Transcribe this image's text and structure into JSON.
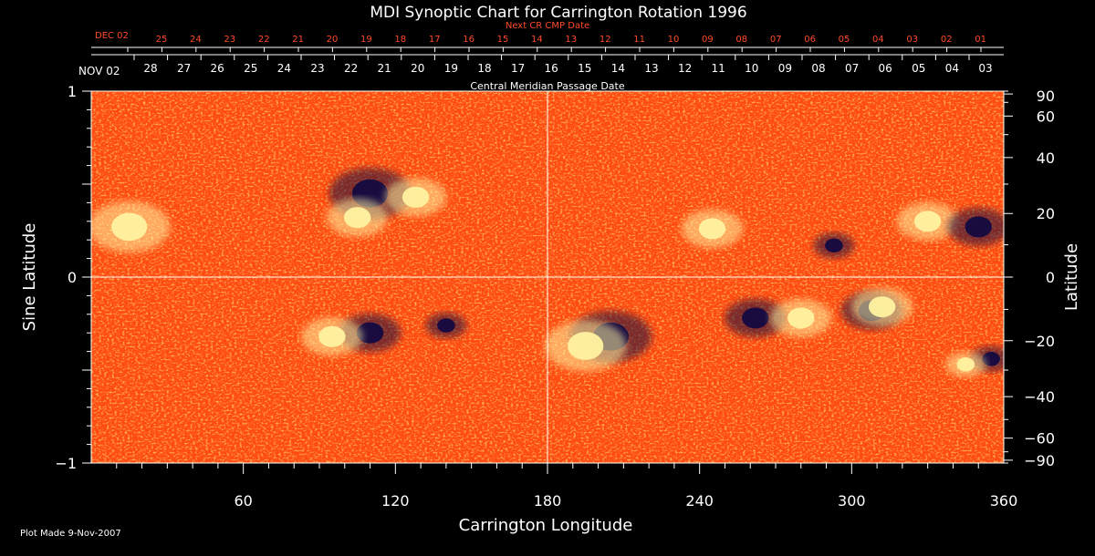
{
  "chart_data": {
    "type": "heatmap",
    "title": "MDI Synoptic Chart for Carrington Rotation 1996",
    "xlabel": "Carrington Longitude",
    "ylabel_left": "Sine Latitude",
    "ylabel_right": "Latitude",
    "xlim": [
      0,
      360
    ],
    "ylim": [
      -1,
      1
    ],
    "x_ticks": [
      60,
      120,
      180,
      240,
      300,
      360
    ],
    "y_ticks_left": [
      {
        "value": 1,
        "label": "1"
      },
      {
        "value": 0,
        "label": "0"
      },
      {
        "value": -1,
        "label": "−1"
      }
    ],
    "y_ticks_right": [
      "90",
      "60",
      "40",
      "20",
      "0",
      "−20",
      "−40",
      "−60",
      "−90"
    ],
    "y_ticks_right_values": [
      90,
      60,
      40,
      20,
      0,
      -20,
      -40,
      -60,
      -90
    ],
    "top_axis_next": {
      "label": "Next CR CMP Date",
      "start_label": "DEC 02",
      "dates": [
        "25",
        "24",
        "23",
        "22",
        "21",
        "20",
        "19",
        "18",
        "17",
        "16",
        "15",
        "14",
        "13",
        "12",
        "11",
        "10",
        "09",
        "08",
        "07",
        "06",
        "05",
        "04",
        "03",
        "02",
        "01"
      ],
      "color": "#ff4a2a"
    },
    "top_axis_cmp": {
      "label": "Central Meridian Passage Date",
      "start_label": "NOV 02",
      "dates": [
        "28",
        "27",
        "26",
        "25",
        "24",
        "23",
        "22",
        "21",
        "20",
        "19",
        "18",
        "17",
        "16",
        "15",
        "14",
        "13",
        "12",
        "11",
        "10",
        "09",
        "08",
        "07",
        "06",
        "05",
        "04",
        "03"
      ]
    },
    "active_regions": [
      {
        "lon": 110,
        "sinlat": 0.45,
        "polarity": "negative",
        "size": 3
      },
      {
        "lon": 128,
        "sinlat": 0.43,
        "polarity": "positive",
        "size": 2
      },
      {
        "lon": 105,
        "sinlat": 0.32,
        "polarity": "positive",
        "size": 2
      },
      {
        "lon": 15,
        "sinlat": 0.27,
        "polarity": "positive",
        "size": 3
      },
      {
        "lon": 110,
        "sinlat": -0.3,
        "polarity": "negative",
        "size": 2
      },
      {
        "lon": 95,
        "sinlat": -0.32,
        "polarity": "positive",
        "size": 2
      },
      {
        "lon": 140,
        "sinlat": -0.26,
        "polarity": "negative",
        "size": 1
      },
      {
        "lon": 205,
        "sinlat": -0.32,
        "polarity": "negative",
        "size": 3
      },
      {
        "lon": 195,
        "sinlat": -0.37,
        "polarity": "positive",
        "size": 3
      },
      {
        "lon": 262,
        "sinlat": -0.22,
        "polarity": "negative",
        "size": 2
      },
      {
        "lon": 280,
        "sinlat": -0.22,
        "polarity": "positive",
        "size": 2
      },
      {
        "lon": 308,
        "sinlat": -0.18,
        "polarity": "negative",
        "size": 2
      },
      {
        "lon": 312,
        "sinlat": -0.16,
        "polarity": "positive",
        "size": 2
      },
      {
        "lon": 330,
        "sinlat": 0.3,
        "polarity": "positive",
        "size": 2
      },
      {
        "lon": 350,
        "sinlat": 0.27,
        "polarity": "negative",
        "size": 2
      },
      {
        "lon": 293,
        "sinlat": 0.17,
        "polarity": "negative",
        "size": 1
      },
      {
        "lon": 245,
        "sinlat": 0.26,
        "polarity": "positive",
        "size": 2
      },
      {
        "lon": 355,
        "sinlat": -0.44,
        "polarity": "negative",
        "size": 1
      },
      {
        "lon": 345,
        "sinlat": -0.47,
        "polarity": "positive",
        "size": 1
      }
    ],
    "colors": {
      "background": "#ff4a10",
      "positive": "#fff2a0",
      "negative": "#140a40",
      "grid": "#ffffff"
    }
  },
  "footer": {
    "plot_made": "Plot Made  9-Nov-2007"
  }
}
